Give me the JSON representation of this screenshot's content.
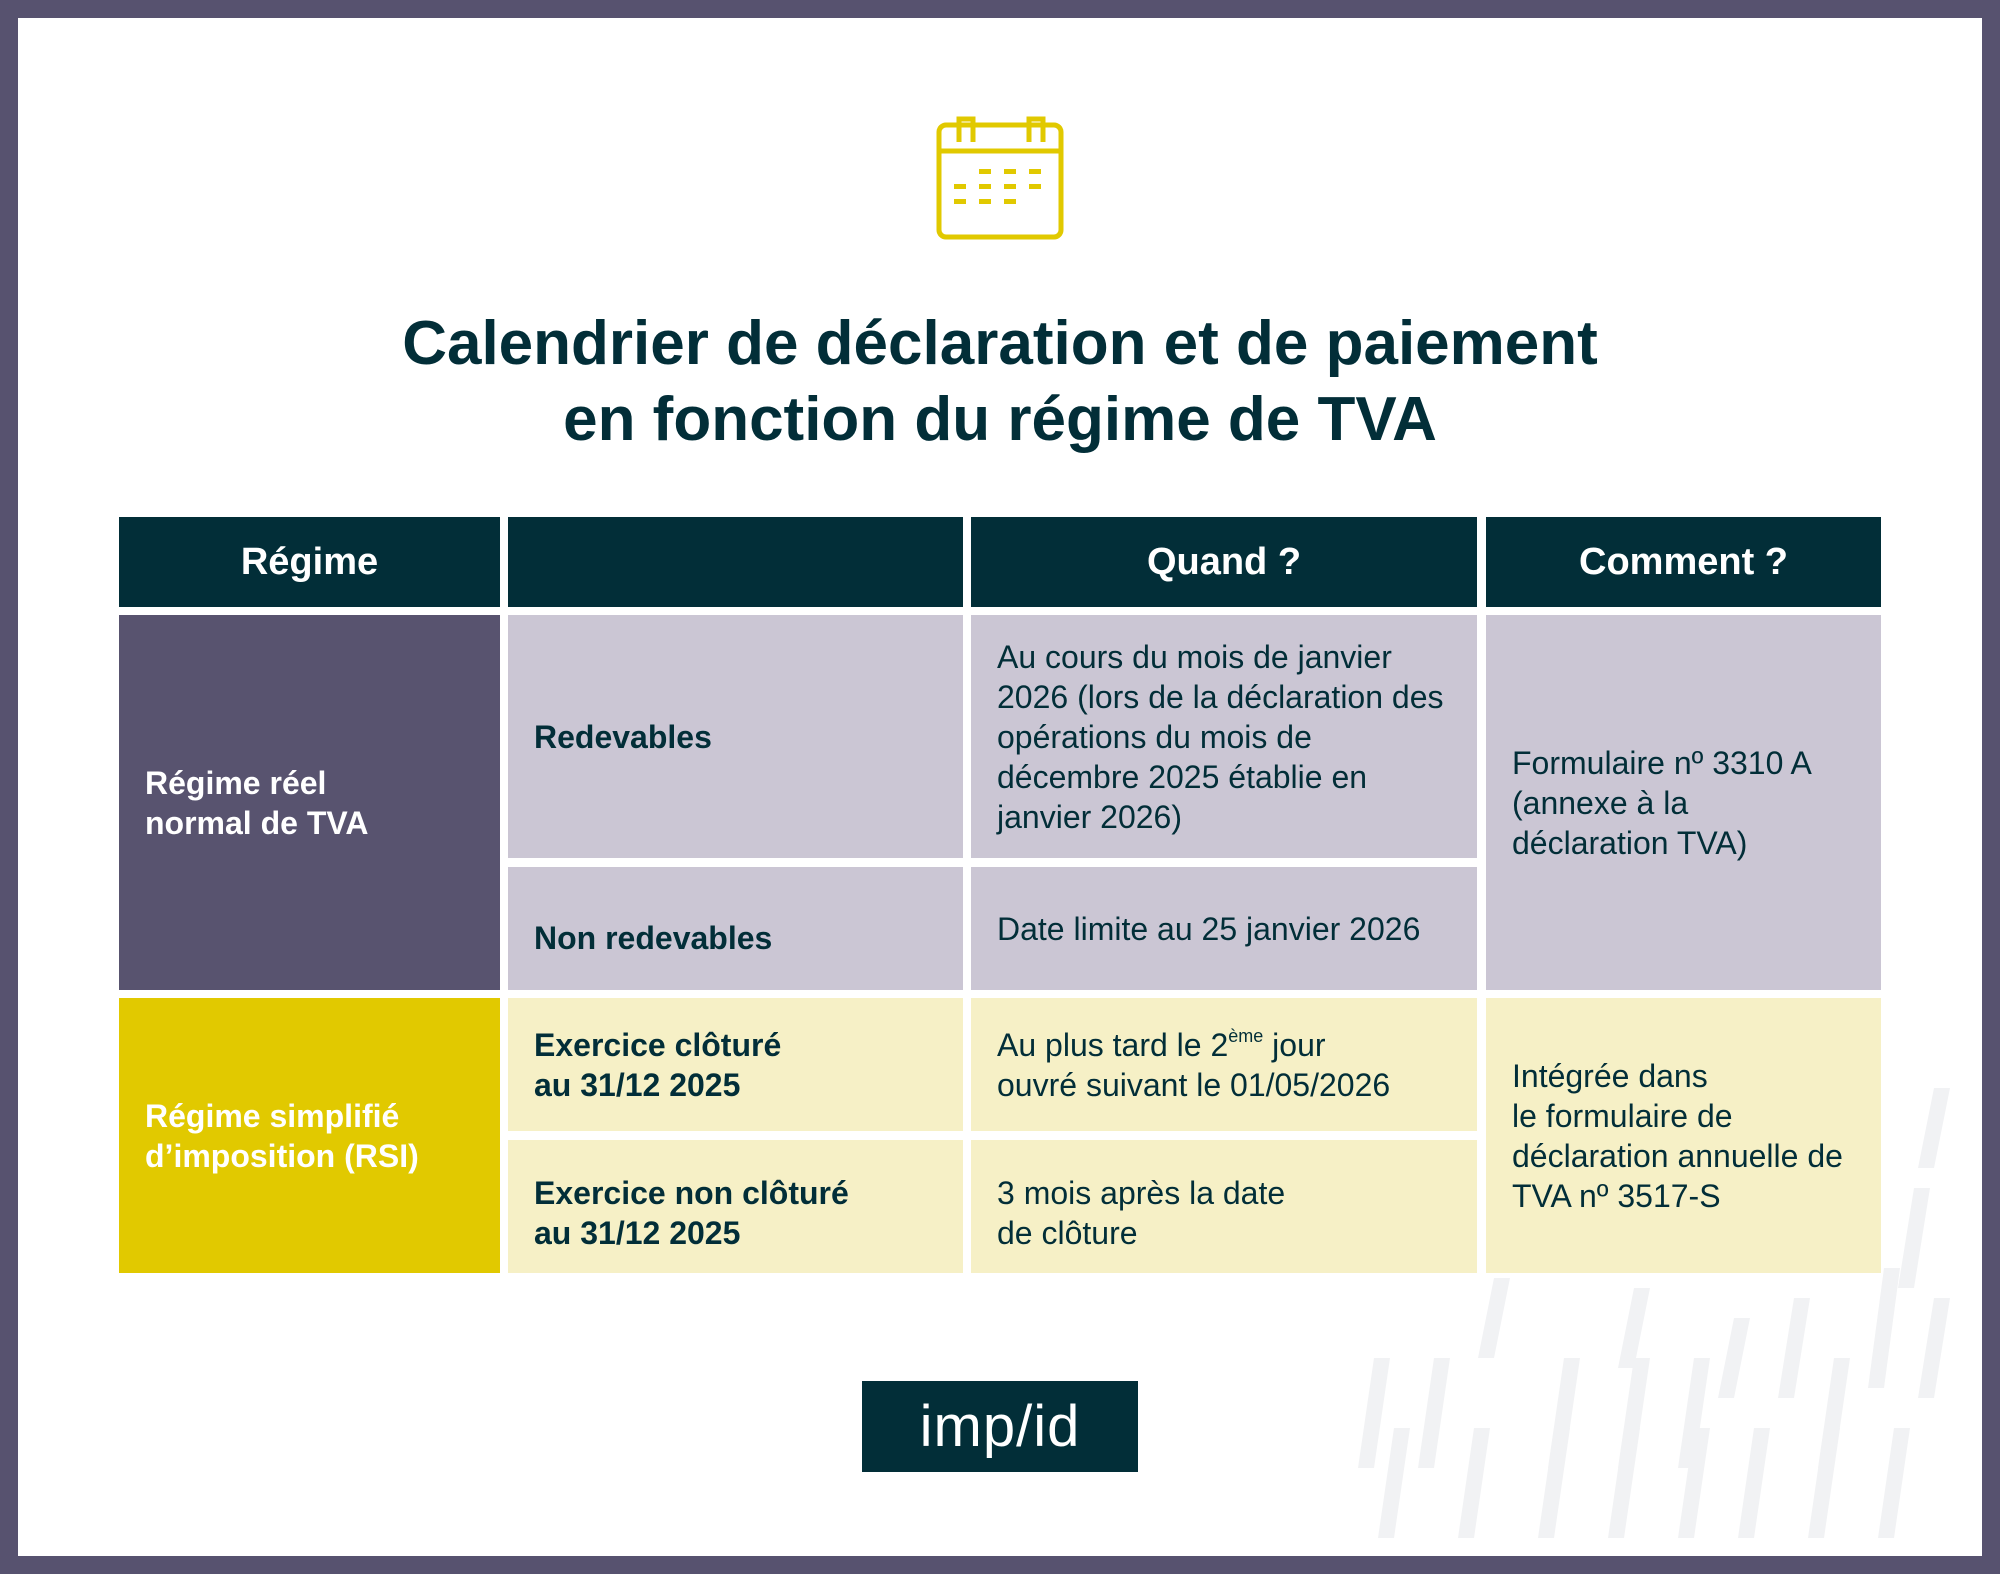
{
  "title": {
    "line1": "Calendrier de déclaration et de paiement",
    "line2": "en fonction du régime de TVA"
  },
  "icons": {
    "header": "calendar-icon"
  },
  "colors": {
    "border": "#57526f",
    "dark": "#022e38",
    "purple": "#58536f",
    "lavender": "#cbc6d4",
    "yellow": "#e1c900",
    "light_yellow": "#f6f0c6"
  },
  "table": {
    "headers": [
      "Régime",
      "",
      "Quand ?",
      "Comment ?"
    ],
    "reel": {
      "regime": "Régime réel normal de TVA",
      "rows": [
        {
          "label": "Redevables",
          "quand": "Au cours du mois de janvier 2026 (lors de la déclaration des opérations du mois de décembre 2025 établie en janvier 2026)"
        },
        {
          "label": "Non redevables",
          "quand": "Date limite au 25 janvier 2026"
        }
      ],
      "comment": "Formulaire nº 3310 A (annexe à la déclaration TVA)"
    },
    "rsi": {
      "regime": "Régime simplifié d’imposition (RSI)",
      "rows": [
        {
          "label_l1": "Exercice clôturé",
          "label_l2": "au 31/12 2025",
          "quand_pre": "Au plus tard le 2",
          "quand_sup": "ème",
          "quand_post": " jour",
          "quand_l2": "ouvré suivant le 01/05/2026"
        },
        {
          "label_l1": "Exercice non clôturé",
          "label_l2": "au 31/12 2025",
          "quand_l1": "3 mois après la date",
          "quand_l2": "de clôture"
        }
      ],
      "comment_l1": "Intégrée dans",
      "comment_l2": "le formulaire de déclaration annuelle de TVA nº 3517-S"
    }
  },
  "logo": {
    "text": "imp/id"
  }
}
